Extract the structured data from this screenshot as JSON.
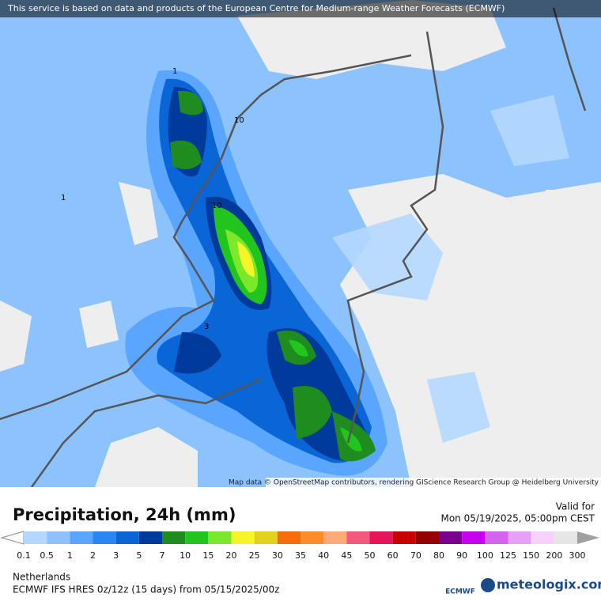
{
  "banner": "This service is based on data and products of the European Centre for Medium-range Weather Forecasts (ECMWF)",
  "map": {
    "contour_labels": [
      "1",
      "1",
      "10",
      "10",
      "3"
    ],
    "attribution": "Map data © OpenStreetMap contributors, rendering GIScience Research Group @ Heidelberg University"
  },
  "header": {
    "title": "Precipitation, 24h (mm)",
    "valid_label": "Valid for",
    "valid_time": "Mon 05/19/2025, 05:00pm CEST"
  },
  "legend": {
    "ticks": [
      0.1,
      0.5,
      1,
      2,
      3,
      5,
      7,
      10,
      15,
      20,
      25,
      30,
      35,
      40,
      45,
      50,
      60,
      70,
      80,
      90,
      100,
      125,
      150,
      200,
      300
    ],
    "colors": [
      "#ffffff",
      "#b4d7ff",
      "#8cc3ff",
      "#5aa5ff",
      "#2a86f5",
      "#0a66d6",
      "#003a9a",
      "#1e8c1e",
      "#22c41e",
      "#7ce82a",
      "#f5f52a",
      "#e2d21e",
      "#f56e0a",
      "#ff8c28",
      "#ffaa78",
      "#f5587d",
      "#e6145a",
      "#c80000",
      "#960000",
      "#78008c",
      "#c800f0",
      "#d264f0",
      "#e6a0f5",
      "#f5d2fa",
      "#e6e6e6",
      "#a0a0a0"
    ]
  },
  "footer": {
    "region": "Netherlands",
    "model": "ECMWF IFS HRES 0z/12z (15 days)  from  05/15/2025/00z",
    "ecmwf_logo": "ECMWF",
    "brand": "meteologix.com"
  }
}
